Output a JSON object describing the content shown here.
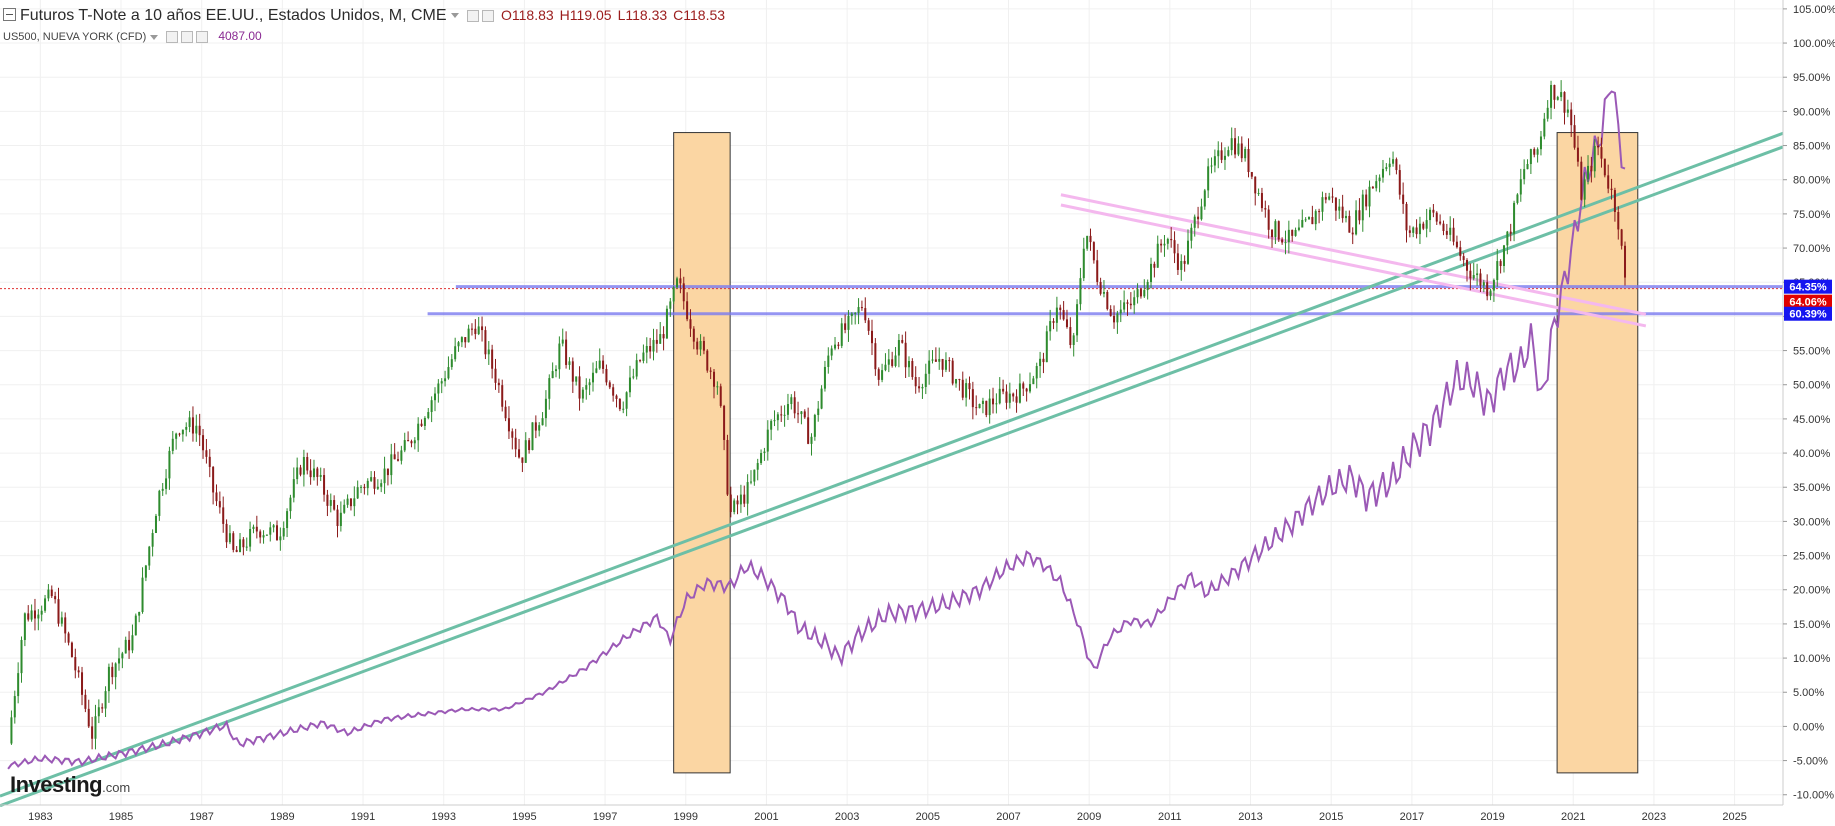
{
  "header": {
    "title": "Futuros T-Note a 10 años EE.UU., Estados Unidos, M, CME",
    "ohlc": {
      "open": "O118.83",
      "high": "H119.05",
      "low": "L118.33",
      "close": "C118.53"
    },
    "secondary_symbol": "US500, NUEVA YORK (CFD)",
    "secondary_value": "4087.00"
  },
  "logo": {
    "brand": "Investing",
    "suffix": ".com"
  },
  "colors": {
    "up": "#2e8b2e",
    "down": "#8b1a1a",
    "spx_line": "#9b59b6",
    "trendline": "#6dbfa6",
    "resistance": "#7b7bf0",
    "pink_channel": "#f4b8ee",
    "highlight_box": "#fbd6a3",
    "grid": "#f0f0f0",
    "badge_blue": "#1515f0",
    "badge_red": "#e00000"
  },
  "chart_data": {
    "type": "candlestick",
    "interval": "monthly",
    "x_range": [
      1982.0,
      2026.2
    ],
    "y_range_pct": [
      -11.5,
      106.3
    ],
    "x_ticks": [
      "1983",
      "1985",
      "1987",
      "1989",
      "1991",
      "1993",
      "1995",
      "1997",
      "1999",
      "2001",
      "2003",
      "2005",
      "2007",
      "2009",
      "2011",
      "2013",
      "2015",
      "2017",
      "2019",
      "2021",
      "2023",
      "2025"
    ],
    "y_ticks": [
      "105.00%",
      "100.00%",
      "95.00%",
      "90.00%",
      "85.00%",
      "80.00%",
      "75.00%",
      "70.00%",
      "65.00%",
      "60.00%",
      "55.00%",
      "50.00%",
      "45.00%",
      "40.00%",
      "35.00%",
      "30.00%",
      "25.00%",
      "20.00%",
      "15.00%",
      "10.00%",
      "5.00%",
      "0.00%",
      "-5.00%",
      "-10.00%"
    ],
    "y_tick_values": [
      105,
      100,
      95,
      90,
      85,
      80,
      75,
      70,
      65,
      60,
      55,
      50,
      45,
      40,
      35,
      30,
      25,
      20,
      15,
      10,
      5,
      0,
      -5,
      -10
    ],
    "tnote_path": [
      [
        1982.2,
        -2.5
      ],
      [
        1982.6,
        16
      ],
      [
        1983.3,
        19
      ],
      [
        1983.8,
        10
      ],
      [
        1984.3,
        -1.5
      ],
      [
        1984.7,
        8
      ],
      [
        1985.3,
        13
      ],
      [
        1985.9,
        33
      ],
      [
        1986.4,
        44
      ],
      [
        1986.9,
        44
      ],
      [
        1987.3,
        34
      ],
      [
        1987.8,
        25
      ],
      [
        1988.4,
        29
      ],
      [
        1988.9,
        28
      ],
      [
        1989.5,
        39
      ],
      [
        1989.9,
        36
      ],
      [
        1990.4,
        30
      ],
      [
        1990.9,
        35
      ],
      [
        1991.5,
        37
      ],
      [
        1992.1,
        41
      ],
      [
        1992.6,
        47
      ],
      [
        1992.9,
        50
      ],
      [
        1993.3,
        55
      ],
      [
        1993.8,
        59
      ],
      [
        1994.3,
        51
      ],
      [
        1994.9,
        39
      ],
      [
        1995.5,
        47
      ],
      [
        1995.9,
        56
      ],
      [
        1996.4,
        48
      ],
      [
        1996.9,
        53
      ],
      [
        1997.4,
        47
      ],
      [
        1997.9,
        54
      ],
      [
        1998.4,
        57
      ],
      [
        1998.8,
        65
      ],
      [
        1999.3,
        56
      ],
      [
        1999.8,
        50
      ],
      [
        2000.1,
        31
      ],
      [
        2000.6,
        35
      ],
      [
        2001.1,
        44
      ],
      [
        2001.6,
        48
      ],
      [
        2002.1,
        42
      ],
      [
        2002.6,
        56
      ],
      [
        2003.1,
        59
      ],
      [
        2003.4,
        62
      ],
      [
        2003.8,
        51
      ],
      [
        2004.3,
        56
      ],
      [
        2004.7,
        50
      ],
      [
        2005.3,
        54
      ],
      [
        2005.8,
        50
      ],
      [
        2006.3,
        46
      ],
      [
        2006.7,
        48
      ],
      [
        2007.3,
        49
      ],
      [
        2007.8,
        53
      ],
      [
        2008.2,
        62
      ],
      [
        2008.6,
        55
      ],
      [
        2008.9,
        73
      ],
      [
        2009.2,
        66
      ],
      [
        2009.6,
        60
      ],
      [
        2010.1,
        62
      ],
      [
        2010.6,
        68
      ],
      [
        2010.9,
        72
      ],
      [
        2011.3,
        67
      ],
      [
        2011.9,
        80
      ],
      [
        2012.5,
        86
      ],
      [
        2012.9,
        83
      ],
      [
        2013.5,
        73
      ],
      [
        2014.0,
        71
      ],
      [
        2014.5,
        74
      ],
      [
        2014.9,
        78
      ],
      [
        2015.5,
        73
      ],
      [
        2015.9,
        78
      ],
      [
        2016.5,
        84
      ],
      [
        2016.9,
        72
      ],
      [
        2017.5,
        75
      ],
      [
        2017.9,
        72
      ],
      [
        2018.4,
        67
      ],
      [
        2018.9,
        64
      ],
      [
        2019.4,
        72
      ],
      [
        2019.8,
        82
      ],
      [
        2020.1,
        84
      ],
      [
        2020.4,
        93
      ],
      [
        2020.6,
        93
      ],
      [
        2020.9,
        90
      ],
      [
        2021.2,
        78
      ],
      [
        2021.6,
        85
      ],
      [
        2021.9,
        79
      ],
      [
        2022.1,
        75
      ],
      [
        2022.3,
        64
      ]
    ],
    "spx_path": [
      [
        1982.2,
        -5.8
      ],
      [
        1983.0,
        -4.7
      ],
      [
        1984.0,
        -5.2
      ],
      [
        1985.0,
        -4.0
      ],
      [
        1986.0,
        -2.7
      ],
      [
        1987.0,
        -1.0
      ],
      [
        1987.6,
        0.2
      ],
      [
        1987.9,
        -2.6
      ],
      [
        1989.0,
        -1.0
      ],
      [
        1990.0,
        0.5
      ],
      [
        1990.6,
        -1.0
      ],
      [
        1991.5,
        1.0
      ],
      [
        1992.5,
        1.8
      ],
      [
        1993.5,
        2.5
      ],
      [
        1994.5,
        2.5
      ],
      [
        1995.5,
        5.0
      ],
      [
        1996.5,
        8.5
      ],
      [
        1997.5,
        13.0
      ],
      [
        1998.3,
        16.0
      ],
      [
        1998.6,
        12.5
      ],
      [
        1999.0,
        18.5
      ],
      [
        1999.5,
        21.0
      ],
      [
        2000.1,
        20.5
      ],
      [
        2000.5,
        23.5
      ],
      [
        2000.9,
        22.0
      ],
      [
        2001.5,
        18.0
      ],
      [
        2001.8,
        14.5
      ],
      [
        2002.5,
        12.0
      ],
      [
        2002.8,
        10.0
      ],
      [
        2003.3,
        13.5
      ],
      [
        2004.0,
        16.5
      ],
      [
        2004.8,
        17.0
      ],
      [
        2005.5,
        18.0
      ],
      [
        2006.3,
        20.0
      ],
      [
        2006.9,
        23.0
      ],
      [
        2007.5,
        25.0
      ],
      [
        2007.9,
        23.5
      ],
      [
        2008.3,
        21.0
      ],
      [
        2008.7,
        15.5
      ],
      [
        2009.1,
        8.0
      ],
      [
        2009.5,
        13.0
      ],
      [
        2010.0,
        15.5
      ],
      [
        2010.5,
        15.0
      ],
      [
        2011.0,
        18.5
      ],
      [
        2011.5,
        22.0
      ],
      [
        2011.9,
        19.5
      ],
      [
        2012.5,
        22.0
      ],
      [
        2013.0,
        24.5
      ],
      [
        2013.5,
        27.0
      ],
      [
        2014.0,
        29.5
      ],
      [
        2014.5,
        32.5
      ],
      [
        2015.0,
        35.0
      ],
      [
        2015.5,
        36.5
      ],
      [
        2015.9,
        33.5
      ],
      [
        2016.5,
        36.0
      ],
      [
        2017.0,
        40.5
      ],
      [
        2017.5,
        44.0
      ],
      [
        2017.9,
        48.5
      ],
      [
        2018.1,
        51.0
      ],
      [
        2018.5,
        50.5
      ],
      [
        2018.9,
        47.0
      ],
      [
        2019.3,
        52.0
      ],
      [
        2019.7,
        53.0
      ],
      [
        2020.0,
        57.0
      ],
      [
        2020.2,
        47.0
      ],
      [
        2020.5,
        58.0
      ],
      [
        2020.9,
        68.0
      ],
      [
        2021.3,
        80.0
      ],
      [
        2021.7,
        87.0
      ],
      [
        2021.95,
        95.0
      ],
      [
        2022.1,
        88.0
      ],
      [
        2022.3,
        80.0
      ]
    ],
    "horizontal_levels_pct": [
      64.35,
      60.39
    ],
    "current_price_pct": 64.06,
    "badges": [
      "64.35%",
      "64.06%",
      "60.39%"
    ],
    "highlight_periods": [
      [
        1998.7,
        2000.1
      ],
      [
        2020.6,
        2022.6
      ]
    ],
    "highlight_y_range_pct": [
      -6.8,
      86.9
    ],
    "trendlines_pct": [
      [
        [
          1982.0,
          -10.2
        ],
        [
          2026.2,
          86.8
        ]
      ],
      [
        [
          1982.0,
          -11.6
        ],
        [
          2026.2,
          84.8
        ]
      ]
    ],
    "pink_channel_pct": [
      [
        [
          2008.3,
          77.8
        ],
        [
          2022.8,
          60.3
        ]
      ],
      [
        [
          2008.3,
          76.3
        ],
        [
          2022.8,
          58.6
        ]
      ]
    ]
  }
}
